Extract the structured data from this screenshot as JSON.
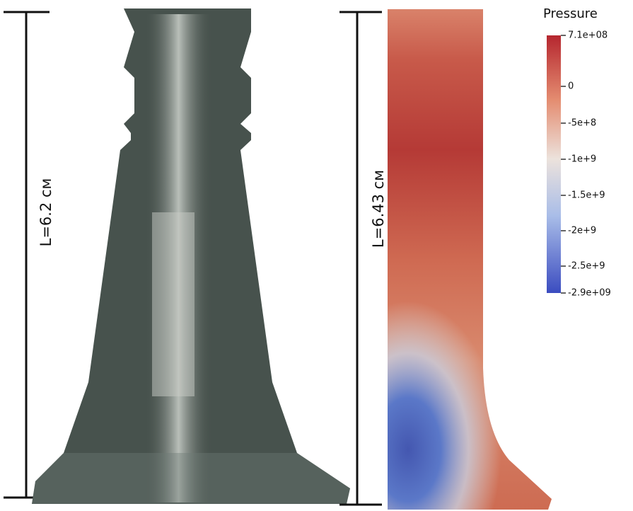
{
  "left": {
    "length_label": "L=6.2 см"
  },
  "right": {
    "length_label": "L=6.43 см"
  },
  "colorbar": {
    "title": "Pressure",
    "ticks": [
      "7.1e+08",
      "0",
      "-5e+8",
      "-1e+9",
      "-1.5e+9",
      "-2e+9",
      "-2.5e+9",
      "-2.9e+09"
    ]
  }
}
